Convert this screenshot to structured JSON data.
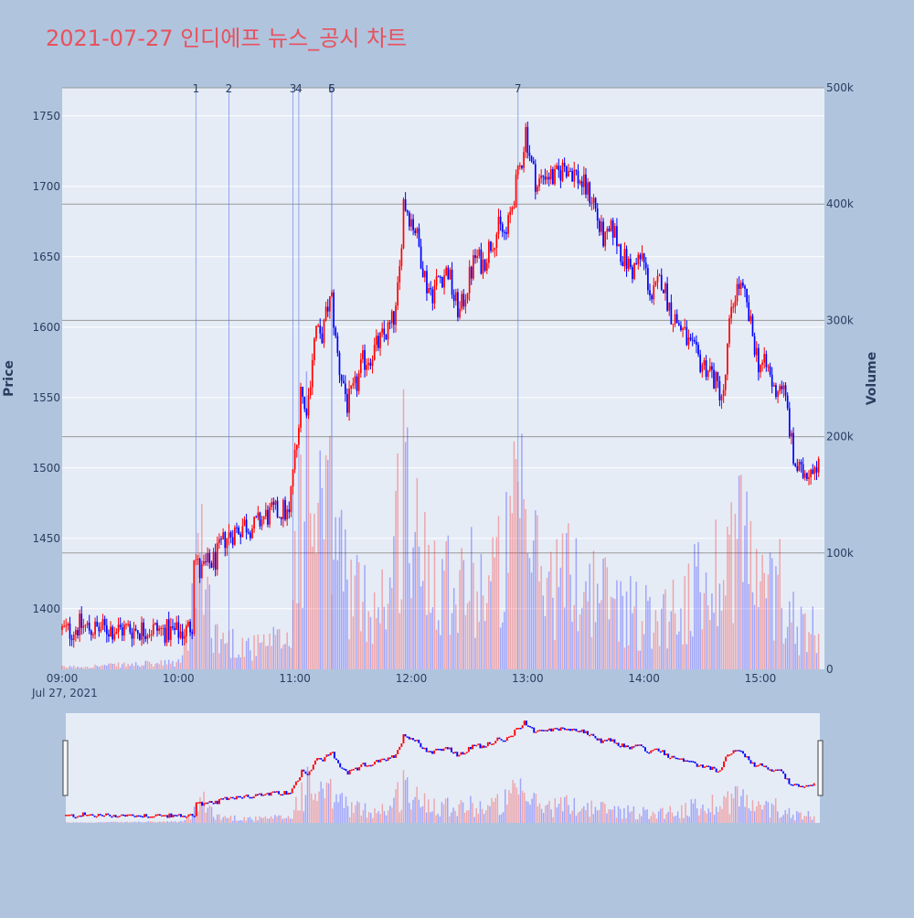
{
  "chart_data": {
    "type": "candlestick",
    "title": "2021-07-27 인디에프 뉴스_공시 차트",
    "ylabel": "Price",
    "y2label": "Volume",
    "ylim": [
      1357,
      1770
    ],
    "y2lim": [
      0,
      500000
    ],
    "yticks": [
      "1400",
      "1450",
      "1500",
      "1550",
      "1600",
      "1650",
      "1700",
      "1750"
    ],
    "y2ticks": [
      "0",
      "100k",
      "200k",
      "300k",
      "400k",
      "500k"
    ],
    "xticks": [
      "09:00",
      "10:00",
      "11:00",
      "12:00",
      "13:00",
      "14:00",
      "15:00"
    ],
    "xdate": "Jul 27, 2021",
    "xlim_minutes": [
      540,
      933
    ],
    "up_color": "#ff0000",
    "down_color": "#0000ff",
    "news_markers": [
      {
        "label": "1",
        "minute": 609
      },
      {
        "label": "2",
        "minute": 626
      },
      {
        "label": "3",
        "minute": 659
      },
      {
        "label": "4",
        "minute": 662
      },
      {
        "label": "5",
        "minute": 679
      },
      {
        "label": "6",
        "minute": 679
      },
      {
        "label": "7",
        "minute": 775
      }
    ],
    "price_path": [
      [
        540,
        1385
      ],
      [
        545,
        1384
      ],
      [
        550,
        1388
      ],
      [
        555,
        1386
      ],
      [
        560,
        1385
      ],
      [
        565,
        1386
      ],
      [
        570,
        1385
      ],
      [
        575,
        1386
      ],
      [
        580,
        1385
      ],
      [
        585,
        1386
      ],
      [
        590,
        1385
      ],
      [
        595,
        1384
      ],
      [
        600,
        1383
      ],
      [
        605,
        1384
      ],
      [
        608,
        1390
      ],
      [
        609,
        1440
      ],
      [
        612,
        1425
      ],
      [
        615,
        1430
      ],
      [
        620,
        1435
      ],
      [
        625,
        1450
      ],
      [
        630,
        1455
      ],
      [
        635,
        1460
      ],
      [
        640,
        1458
      ],
      [
        645,
        1465
      ],
      [
        650,
        1468
      ],
      [
        655,
        1470
      ],
      [
        658,
        1465
      ],
      [
        660,
        1500
      ],
      [
        662,
        1515
      ],
      [
        664,
        1560
      ],
      [
        666,
        1540
      ],
      [
        668,
        1550
      ],
      [
        670,
        1580
      ],
      [
        672,
        1600
      ],
      [
        674,
        1590
      ],
      [
        676,
        1600
      ],
      [
        678,
        1615
      ],
      [
        680,
        1620
      ],
      [
        682,
        1590
      ],
      [
        684,
        1570
      ],
      [
        686,
        1560
      ],
      [
        688,
        1545
      ],
      [
        690,
        1550
      ],
      [
        693,
        1560
      ],
      [
        696,
        1575
      ],
      [
        700,
        1580
      ],
      [
        705,
        1590
      ],
      [
        710,
        1600
      ],
      [
        713,
        1610
      ],
      [
        715,
        1640
      ],
      [
        717,
        1690
      ],
      [
        720,
        1680
      ],
      [
        723,
        1670
      ],
      [
        726,
        1650
      ],
      [
        729,
        1630
      ],
      [
        732,
        1625
      ],
      [
        735,
        1635
      ],
      [
        740,
        1640
      ],
      [
        743,
        1620
      ],
      [
        746,
        1610
      ],
      [
        750,
        1630
      ],
      [
        754,
        1650
      ],
      [
        758,
        1645
      ],
      [
        762,
        1660
      ],
      [
        766,
        1670
      ],
      [
        770,
        1665
      ],
      [
        772,
        1680
      ],
      [
        775,
        1700
      ],
      [
        778,
        1720
      ],
      [
        780,
        1740
      ],
      [
        783,
        1715
      ],
      [
        786,
        1700
      ],
      [
        790,
        1710
      ],
      [
        795,
        1705
      ],
      [
        800,
        1715
      ],
      [
        805,
        1710
      ],
      [
        810,
        1700
      ],
      [
        815,
        1690
      ],
      [
        818,
        1670
      ],
      [
        821,
        1660
      ],
      [
        825,
        1670
      ],
      [
        830,
        1650
      ],
      [
        835,
        1640
      ],
      [
        840,
        1650
      ],
      [
        845,
        1620
      ],
      [
        850,
        1635
      ],
      [
        855,
        1610
      ],
      [
        860,
        1600
      ],
      [
        865,
        1585
      ],
      [
        870,
        1575
      ],
      [
        875,
        1570
      ],
      [
        878,
        1560
      ],
      [
        882,
        1550
      ],
      [
        885,
        1600
      ],
      [
        888,
        1625
      ],
      [
        890,
        1630
      ],
      [
        893,
        1620
      ],
      [
        896,
        1600
      ],
      [
        900,
        1575
      ],
      [
        905,
        1570
      ],
      [
        908,
        1555
      ],
      [
        912,
        1560
      ],
      [
        915,
        1540
      ],
      [
        918,
        1505
      ],
      [
        922,
        1495
      ],
      [
        926,
        1500
      ],
      [
        930,
        1505
      ]
    ],
    "volume_profile": [
      [
        540,
        2000
      ],
      [
        600,
        6000
      ],
      [
        608,
        60000
      ],
      [
        609,
        120000
      ],
      [
        620,
        30000
      ],
      [
        640,
        20000
      ],
      [
        658,
        30000
      ],
      [
        660,
        100000
      ],
      [
        665,
        180000
      ],
      [
        670,
        150000
      ],
      [
        680,
        130000
      ],
      [
        690,
        70000
      ],
      [
        700,
        60000
      ],
      [
        710,
        80000
      ],
      [
        717,
        210000
      ],
      [
        720,
        120000
      ],
      [
        740,
        90000
      ],
      [
        760,
        80000
      ],
      [
        770,
        110000
      ],
      [
        775,
        150000
      ],
      [
        780,
        120000
      ],
      [
        790,
        80000
      ],
      [
        800,
        90000
      ],
      [
        810,
        80000
      ],
      [
        820,
        70000
      ],
      [
        830,
        60000
      ],
      [
        840,
        50000
      ],
      [
        860,
        60000
      ],
      [
        880,
        100000
      ],
      [
        890,
        140000
      ],
      [
        900,
        70000
      ],
      [
        910,
        80000
      ],
      [
        920,
        40000
      ],
      [
        930,
        40000
      ]
    ]
  }
}
